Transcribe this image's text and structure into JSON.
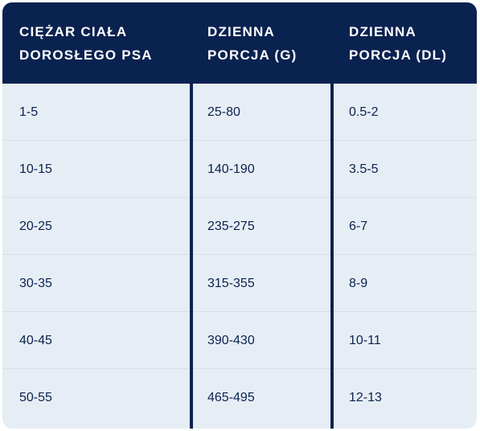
{
  "table": {
    "headers": [
      "CIĘŻAR CIAŁA\nDOROSŁEGO PSA",
      "DZIENNA\nPORCJA (G)",
      "DZIENNA\nPORCJA (DL)"
    ],
    "rows": [
      [
        "1-5",
        "25-80",
        "0.5-2"
      ],
      [
        "10-15",
        "140-190",
        "3.5-5"
      ],
      [
        "20-25",
        "235-275",
        "6-7"
      ],
      [
        "30-35",
        "315-355",
        "8-9"
      ],
      [
        "40-45",
        "390-430",
        "10-11"
      ],
      [
        "50-55",
        "465-495",
        "12-13"
      ]
    ],
    "colors": {
      "header_bg": "#0a2250",
      "body_bg": "#e7edf4",
      "text": "#0a2250"
    }
  }
}
